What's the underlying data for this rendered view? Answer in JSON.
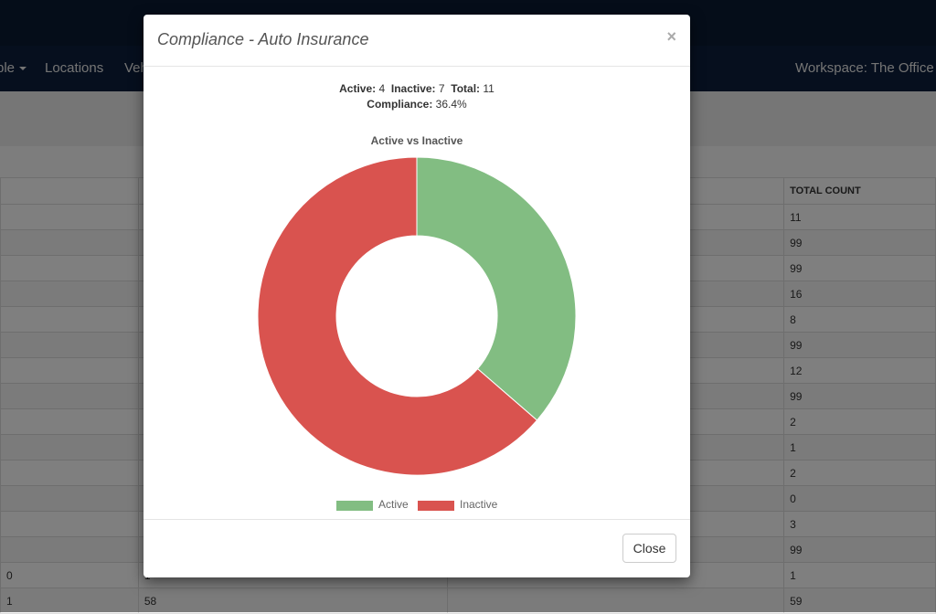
{
  "nav": {
    "people_label": "ple",
    "locations_label": "Locations",
    "vehicles_label": "Veh",
    "workspace_label": "Workspace: The Office"
  },
  "table": {
    "header_total_count": "TOTAL COUNT",
    "rows": [
      {
        "total": "11"
      },
      {
        "total": "99"
      },
      {
        "total": "99"
      },
      {
        "total": "16"
      },
      {
        "total": "8"
      },
      {
        "total": "99"
      },
      {
        "total": "12"
      },
      {
        "total": "99"
      },
      {
        "total": "2"
      },
      {
        "total": "1"
      },
      {
        "total": "2"
      },
      {
        "total": "0"
      },
      {
        "total": "3"
      },
      {
        "total": "99"
      },
      {
        "c1": "0",
        "c2": "1",
        "total": "1"
      },
      {
        "c1": "1",
        "c2": "58",
        "total": "59"
      }
    ]
  },
  "modal": {
    "title": "Compliance - Auto Insurance",
    "close_x": "×",
    "stats": {
      "active_label": "Active:",
      "active_value": "4",
      "inactive_label": "Inactive:",
      "inactive_value": "7",
      "total_label": "Total:",
      "total_value": "11",
      "compliance_label": "Compliance:",
      "compliance_value": "36.4%"
    },
    "close_button": "Close"
  },
  "chart_data": {
    "type": "pie",
    "title": "Active vs Inactive",
    "categories": [
      "Active",
      "Inactive"
    ],
    "values": [
      4,
      7
    ],
    "colors": [
      "#82bd82",
      "#d9534f"
    ],
    "donut": true,
    "legend": "bottom"
  }
}
